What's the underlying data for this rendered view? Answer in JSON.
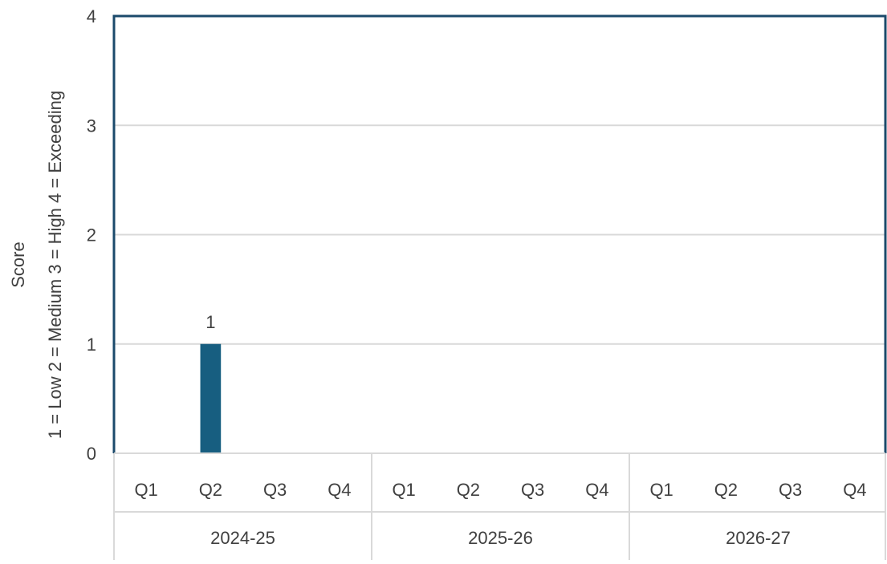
{
  "chart_data": {
    "type": "bar",
    "title": "",
    "ylabel_lines": [
      "Score",
      "1 = Low  2 = Medium  3 = High 4 = Exceeding"
    ],
    "xlabel": "",
    "ylim": [
      0,
      4
    ],
    "yticks": [
      0,
      1,
      2,
      3,
      4
    ],
    "grid": true,
    "legend": "none",
    "groups": [
      {
        "label": "2024-25",
        "categories": [
          "Q1",
          "Q2",
          "Q3",
          "Q4"
        ]
      },
      {
        "label": "2025-26",
        "categories": [
          "Q1",
          "Q2",
          "Q3",
          "Q4"
        ]
      },
      {
        "label": "2026-27",
        "categories": [
          "Q1",
          "Q2",
          "Q3",
          "Q4"
        ]
      }
    ],
    "values": [
      null,
      1,
      null,
      null,
      null,
      null,
      null,
      null,
      null,
      null,
      null,
      null
    ],
    "data_labels": [
      "",
      "1",
      "",
      "",
      "",
      "",
      "",
      "",
      "",
      "",
      "",
      ""
    ],
    "colors": {
      "bar": "#175e80",
      "axis": "#1b4a6b",
      "grid": "#d9d9d9",
      "text": "#404040"
    }
  }
}
